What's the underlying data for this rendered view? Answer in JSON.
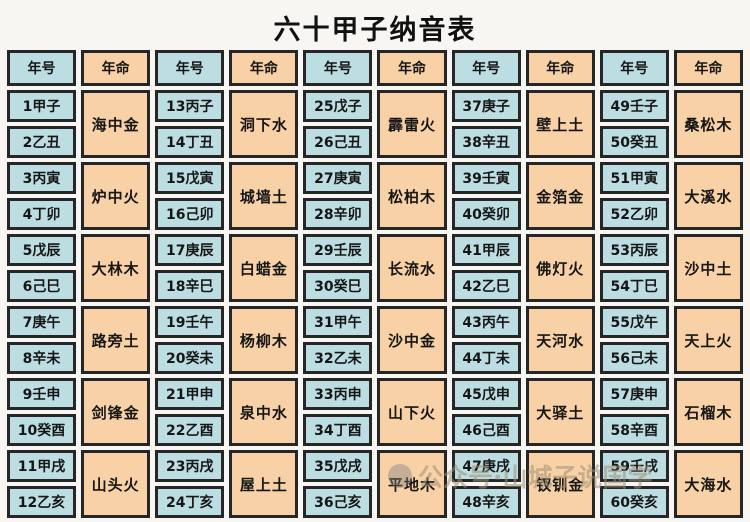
{
  "title": "六十甲子纳音表",
  "header": {
    "year_label": "年号",
    "fate_label": "年命"
  },
  "watermark": {
    "icon": "wechat-official-account-icon",
    "text": "公众号·山城子说国学"
  },
  "colors": {
    "year_cell": "#bcdde2",
    "fate_cell": "#f8d2a6",
    "border": "#262626",
    "background": "#f7f6f3"
  },
  "columns": [
    {
      "groups": [
        {
          "years": [
            "1甲子",
            "2乙丑"
          ],
          "nayin": "海中金"
        },
        {
          "years": [
            "3丙寅",
            "4丁卯"
          ],
          "nayin": "炉中火"
        },
        {
          "years": [
            "5戊辰",
            "6己巳"
          ],
          "nayin": "大林木"
        },
        {
          "years": [
            "7庚午",
            "8辛未"
          ],
          "nayin": "路旁土"
        },
        {
          "years": [
            "9壬申",
            "10癸酉"
          ],
          "nayin": "剑锋金"
        },
        {
          "years": [
            "11甲戌",
            "12乙亥"
          ],
          "nayin": "山头火"
        }
      ]
    },
    {
      "groups": [
        {
          "years": [
            "13丙子",
            "14丁丑"
          ],
          "nayin": "洞下水"
        },
        {
          "years": [
            "15戊寅",
            "16己卯"
          ],
          "nayin": "城墙土"
        },
        {
          "years": [
            "17庚辰",
            "18辛巳"
          ],
          "nayin": "白蜡金"
        },
        {
          "years": [
            "19壬午",
            "20癸未"
          ],
          "nayin": "杨柳木"
        },
        {
          "years": [
            "21甲申",
            "22乙酉"
          ],
          "nayin": "泉中水"
        },
        {
          "years": [
            "23丙戌",
            "24丁亥"
          ],
          "nayin": "屋上土"
        }
      ]
    },
    {
      "groups": [
        {
          "years": [
            "25戊子",
            "26己丑"
          ],
          "nayin": "霹雷火"
        },
        {
          "years": [
            "27庚寅",
            "28辛卯"
          ],
          "nayin": "松柏木"
        },
        {
          "years": [
            "29壬辰",
            "30癸巳"
          ],
          "nayin": "长流水"
        },
        {
          "years": [
            "31甲午",
            "32乙未"
          ],
          "nayin": "沙中金"
        },
        {
          "years": [
            "33丙申",
            "34丁酉"
          ],
          "nayin": "山下火"
        },
        {
          "years": [
            "35戊戌",
            "36己亥"
          ],
          "nayin": "平地木"
        }
      ]
    },
    {
      "groups": [
        {
          "years": [
            "37庚子",
            "38辛丑"
          ],
          "nayin": "壁上土"
        },
        {
          "years": [
            "39壬寅",
            "40癸卯"
          ],
          "nayin": "金箔金"
        },
        {
          "years": [
            "41甲辰",
            "42乙巳"
          ],
          "nayin": "佛灯火"
        },
        {
          "years": [
            "43丙午",
            "44丁未"
          ],
          "nayin": "天河水"
        },
        {
          "years": [
            "45戊申",
            "46己酉"
          ],
          "nayin": "大驿土"
        },
        {
          "years": [
            "47庚戌",
            "48辛亥"
          ],
          "nayin": "钗钏金"
        }
      ]
    },
    {
      "groups": [
        {
          "years": [
            "49壬子",
            "50癸丑"
          ],
          "nayin": "桑松木"
        },
        {
          "years": [
            "51甲寅",
            "52乙卯"
          ],
          "nayin": "大溪水"
        },
        {
          "years": [
            "53丙辰",
            "54丁巳"
          ],
          "nayin": "沙中土"
        },
        {
          "years": [
            "55戊午",
            "56己未"
          ],
          "nayin": "天上火"
        },
        {
          "years": [
            "57庚申",
            "58辛酉"
          ],
          "nayin": "石榴木"
        },
        {
          "years": [
            "59壬戌",
            "60癸亥"
          ],
          "nayin": "大海水"
        }
      ]
    }
  ]
}
